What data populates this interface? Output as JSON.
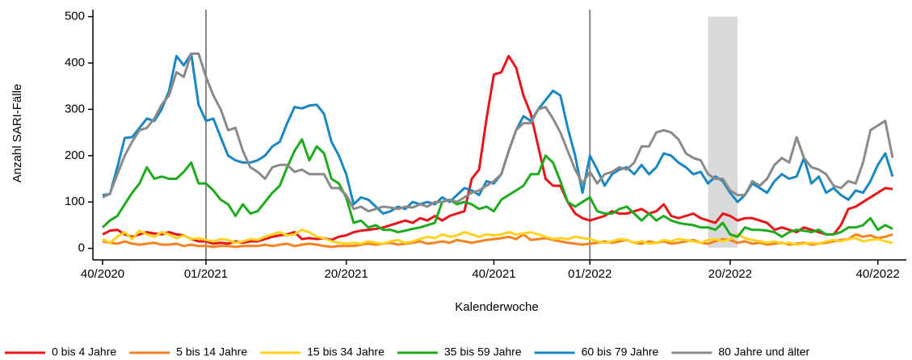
{
  "chart_data": {
    "type": "line",
    "xlabel": "Kalenderwoche",
    "ylabel": "Anzahl SARI-Fälle",
    "categories": [
      "40/2020",
      null,
      null,
      null,
      null,
      null,
      null,
      null,
      null,
      null,
      null,
      null,
      null,
      null,
      "01/2021",
      null,
      null,
      null,
      null,
      null,
      null,
      null,
      null,
      null,
      null,
      null,
      null,
      null,
      null,
      null,
      null,
      null,
      null,
      "20/2021",
      null,
      null,
      null,
      null,
      null,
      null,
      null,
      null,
      null,
      null,
      null,
      null,
      null,
      null,
      null,
      null,
      null,
      null,
      null,
      "40/2021",
      null,
      null,
      null,
      null,
      null,
      null,
      null,
      null,
      null,
      null,
      null,
      null,
      "01/2022",
      null,
      null,
      null,
      null,
      null,
      null,
      null,
      null,
      null,
      null,
      null,
      null,
      null,
      null,
      null,
      null,
      null,
      null,
      "20/2022",
      null,
      null,
      null,
      null,
      null,
      null,
      null,
      null,
      null,
      null,
      null,
      null,
      null,
      null,
      null,
      null,
      null,
      null,
      null,
      "40/2022",
      null,
      null
    ],
    "ylim": [
      -25,
      515
    ],
    "yticks": [
      0,
      100,
      200,
      300,
      400,
      500
    ],
    "series": [
      {
        "name": "0 bis 4 Jahre",
        "color": "#e8141a",
        "values": [
          30,
          38,
          40,
          30,
          25,
          30,
          35,
          32,
          30,
          35,
          30,
          28,
          20,
          15,
          15,
          10,
          12,
          10,
          15,
          12,
          15,
          15,
          20,
          25,
          28,
          30,
          35,
          20,
          22,
          20,
          22,
          18,
          25,
          28,
          35,
          38,
          40,
          42,
          45,
          50,
          55,
          60,
          55,
          65,
          60,
          70,
          60,
          70,
          75,
          80,
          150,
          170,
          280,
          375,
          380,
          415,
          390,
          330,
          290,
          220,
          150,
          135,
          135,
          100,
          75,
          65,
          60,
          65,
          70,
          80,
          75,
          75,
          80,
          85,
          75,
          80,
          95,
          70,
          65,
          70,
          75,
          65,
          60,
          55,
          75,
          70,
          60,
          65,
          65,
          60,
          55,
          40,
          45,
          40,
          35,
          45,
          40,
          35,
          30,
          30,
          50,
          85,
          90,
          100,
          110,
          120,
          130,
          128
        ]
      },
      {
        "name": "5 bis 14 Jahre",
        "color": "#f5821f",
        "values": [
          15,
          12,
          10,
          15,
          10,
          8,
          10,
          12,
          8,
          8,
          10,
          5,
          8,
          5,
          5,
          3,
          5,
          5,
          3,
          5,
          5,
          5,
          8,
          5,
          8,
          10,
          5,
          8,
          10,
          8,
          5,
          3,
          5,
          5,
          5,
          8,
          10,
          8,
          10,
          12,
          8,
          10,
          12,
          15,
          10,
          12,
          15,
          12,
          18,
          15,
          12,
          15,
          18,
          20,
          22,
          25,
          20,
          30,
          18,
          20,
          22,
          18,
          15,
          12,
          10,
          8,
          10,
          12,
          15,
          12,
          15,
          18,
          12,
          10,
          15,
          12,
          15,
          10,
          12,
          15,
          18,
          12,
          10,
          15,
          20,
          18,
          12,
          15,
          10,
          12,
          8,
          10,
          12,
          8,
          10,
          12,
          8,
          10,
          12,
          15,
          18,
          20,
          30,
          25,
          28,
          22,
          25,
          30
        ]
      },
      {
        "name": "15 bis 34 Jahre",
        "color": "#ffd21f",
        "values": [
          20,
          12,
          25,
          35,
          20,
          38,
          30,
          25,
          35,
          30,
          22,
          28,
          20,
          22,
          18,
          15,
          20,
          18,
          12,
          15,
          20,
          18,
          25,
          30,
          35,
          28,
          30,
          40,
          35,
          25,
          22,
          15,
          12,
          10,
          12,
          10,
          15,
          12,
          10,
          15,
          18,
          12,
          15,
          20,
          25,
          22,
          30,
          25,
          28,
          35,
          30,
          25,
          30,
          28,
          30,
          35,
          30,
          32,
          35,
          30,
          25,
          20,
          22,
          20,
          25,
          22,
          20,
          15,
          12,
          15,
          20,
          18,
          12,
          15,
          10,
          12,
          18,
          15,
          20,
          18,
          15,
          12,
          18,
          20,
          15,
          20,
          30,
          22,
          18,
          15,
          12,
          15,
          10,
          12,
          8,
          10,
          12,
          10,
          15,
          18,
          15,
          20,
          22,
          15,
          18,
          20,
          15,
          12
        ]
      },
      {
        "name": "35 bis 59 Jahre",
        "color": "#1faa1f",
        "values": [
          45,
          60,
          70,
          95,
          120,
          140,
          175,
          150,
          155,
          150,
          150,
          165,
          185,
          140,
          140,
          125,
          105,
          95,
          70,
          95,
          75,
          80,
          100,
          120,
          135,
          175,
          210,
          235,
          190,
          220,
          205,
          150,
          140,
          110,
          55,
          60,
          45,
          50,
          40,
          40,
          35,
          38,
          42,
          45,
          50,
          55,
          100,
          105,
          95,
          100,
          95,
          85,
          90,
          80,
          105,
          115,
          125,
          135,
          160,
          160,
          200,
          185,
          145,
          100,
          90,
          100,
          110,
          80,
          75,
          75,
          85,
          90,
          75,
          60,
          75,
          60,
          70,
          60,
          55,
          52,
          50,
          45,
          45,
          40,
          55,
          30,
          25,
          45,
          40,
          40,
          38,
          35,
          25,
          35,
          40,
          38,
          35,
          40,
          30,
          30,
          35,
          45,
          45,
          50,
          65,
          40,
          50,
          42
        ]
      },
      {
        "name": "60 bis 79 Jahre",
        "color": "#1a87c0",
        "values": [
          115,
          117,
          175,
          238,
          240,
          260,
          280,
          275,
          300,
          340,
          415,
          395,
          420,
          310,
          275,
          280,
          240,
          200,
          190,
          185,
          185,
          190,
          200,
          220,
          230,
          270,
          305,
          302,
          308,
          310,
          290,
          230,
          200,
          160,
          95,
          110,
          105,
          90,
          75,
          80,
          90,
          85,
          100,
          95,
          100,
          95,
          110,
          100,
          115,
          130,
          125,
          115,
          145,
          140,
          160,
          210,
          255,
          285,
          275,
          300,
          320,
          340,
          330,
          260,
          200,
          120,
          200,
          170,
          135,
          160,
          170,
          175,
          160,
          180,
          160,
          175,
          205,
          200,
          185,
          175,
          160,
          165,
          140,
          155,
          145,
          120,
          100,
          115,
          140,
          130,
          120,
          145,
          160,
          150,
          155,
          195,
          140,
          155,
          120,
          130,
          115,
          105,
          125,
          120,
          145,
          180,
          205,
          155
        ]
      },
      {
        "name": "80 Jahre und älter",
        "color": "#8a8a8a",
        "values": [
          110,
          118,
          160,
          200,
          230,
          255,
          260,
          280,
          310,
          330,
          380,
          370,
          420,
          420,
          370,
          330,
          300,
          255,
          260,
          210,
          175,
          165,
          150,
          175,
          180,
          180,
          165,
          170,
          160,
          160,
          160,
          130,
          130,
          115,
          85,
          90,
          80,
          85,
          90,
          88,
          85,
          90,
          88,
          95,
          90,
          100,
          100,
          105,
          100,
          110,
          120,
          125,
          135,
          145,
          160,
          210,
          255,
          270,
          270,
          300,
          305,
          280,
          250,
          210,
          170,
          140,
          165,
          140,
          160,
          165,
          175,
          170,
          185,
          220,
          220,
          250,
          255,
          250,
          235,
          205,
          195,
          190,
          160,
          150,
          150,
          125,
          115,
          115,
          145,
          135,
          150,
          180,
          195,
          185,
          240,
          195,
          175,
          170,
          160,
          135,
          130,
          145,
          140,
          185,
          255,
          265,
          275,
          195
        ]
      }
    ]
  }
}
